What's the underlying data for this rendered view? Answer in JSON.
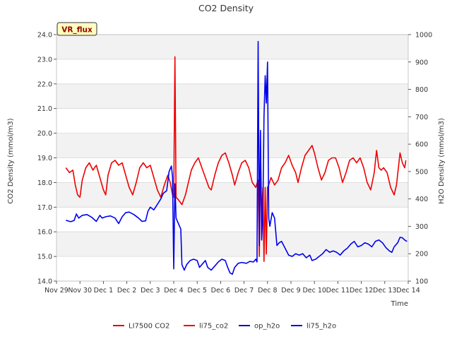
{
  "chart_data": {
    "type": "line",
    "title": "CO2 Density",
    "site_badge": "VR_flux",
    "xlabel": "Time",
    "ylabel_left": "CO2 Density (mmol/m3)",
    "ylabel_right": "H2O Density (mmol/m3)",
    "x_range_days": [
      0,
      15
    ],
    "x_tick_labels": [
      "Nov 29",
      "Nov 30",
      "Dec 1",
      "Dec 2",
      "Dec 3",
      "Dec 4",
      "Dec 5",
      "Dec 6",
      "Dec 7",
      "Dec 8",
      "Dec 9",
      "Dec 10",
      "Dec 11",
      "Dec 12",
      "Dec 13",
      "Dec 14"
    ],
    "y_left": {
      "min": 14.0,
      "max": 24.0,
      "ticks": [
        14.0,
        15.0,
        16.0,
        17.0,
        18.0,
        19.0,
        20.0,
        21.0,
        22.0,
        23.0,
        24.0
      ]
    },
    "y_right": {
      "min": 100,
      "max": 1000,
      "ticks": [
        100,
        200,
        300,
        400,
        500,
        600,
        700,
        800,
        900,
        1000
      ]
    },
    "legend": [
      {
        "label": "LI7500 CO2",
        "color": "#dd0000"
      },
      {
        "label": "li75_co2",
        "color": "#ee0000"
      },
      {
        "label": "op_h2o",
        "color": "#0000cc"
      },
      {
        "label": "li75_h2o",
        "color": "#0000ee"
      }
    ],
    "series": [
      {
        "name": "li75_co2",
        "axis": "left",
        "color": "#ee0000",
        "points": [
          [
            0.4,
            18.6
          ],
          [
            0.55,
            18.4
          ],
          [
            0.7,
            18.5
          ],
          [
            0.8,
            17.9
          ],
          [
            0.9,
            17.5
          ],
          [
            1.0,
            17.4
          ],
          [
            1.1,
            18.1
          ],
          [
            1.25,
            18.6
          ],
          [
            1.4,
            18.8
          ],
          [
            1.55,
            18.5
          ],
          [
            1.7,
            18.7
          ],
          [
            1.85,
            18.2
          ],
          [
            2.0,
            17.7
          ],
          [
            2.1,
            17.5
          ],
          [
            2.2,
            18.3
          ],
          [
            2.35,
            18.8
          ],
          [
            2.5,
            18.9
          ],
          [
            2.65,
            18.7
          ],
          [
            2.8,
            18.8
          ],
          [
            2.95,
            18.3
          ],
          [
            3.1,
            17.8
          ],
          [
            3.25,
            17.5
          ],
          [
            3.4,
            18.0
          ],
          [
            3.55,
            18.6
          ],
          [
            3.7,
            18.8
          ],
          [
            3.85,
            18.6
          ],
          [
            4.0,
            18.7
          ],
          [
            4.15,
            18.2
          ],
          [
            4.3,
            17.7
          ],
          [
            4.45,
            17.4
          ],
          [
            4.6,
            17.9
          ],
          [
            4.75,
            18.3
          ],
          [
            4.85,
            18.0
          ],
          [
            4.95,
            17.5
          ],
          [
            5.0,
            17.4
          ],
          [
            5.05,
            23.1
          ],
          [
            5.1,
            17.4
          ],
          [
            5.2,
            17.3
          ],
          [
            5.35,
            17.1
          ],
          [
            5.5,
            17.5
          ],
          [
            5.6,
            17.9
          ],
          [
            5.75,
            18.5
          ],
          [
            5.9,
            18.8
          ],
          [
            6.05,
            19.0
          ],
          [
            6.2,
            18.6
          ],
          [
            6.35,
            18.2
          ],
          [
            6.5,
            17.8
          ],
          [
            6.6,
            17.7
          ],
          [
            6.75,
            18.3
          ],
          [
            6.9,
            18.8
          ],
          [
            7.05,
            19.1
          ],
          [
            7.2,
            19.2
          ],
          [
            7.35,
            18.8
          ],
          [
            7.5,
            18.3
          ],
          [
            7.6,
            17.9
          ],
          [
            7.75,
            18.4
          ],
          [
            7.9,
            18.8
          ],
          [
            8.05,
            18.9
          ],
          [
            8.2,
            18.6
          ],
          [
            8.35,
            18.0
          ],
          [
            8.5,
            17.8
          ],
          [
            8.6,
            18.1
          ],
          [
            8.65,
            15.0
          ],
          [
            8.7,
            19.2
          ],
          [
            8.75,
            16.5
          ],
          [
            8.8,
            17.8
          ],
          [
            8.85,
            14.8
          ],
          [
            8.9,
            17.8
          ],
          [
            8.95,
            15.1
          ],
          [
            9.0,
            17.8
          ],
          [
            9.05,
            17.9
          ],
          [
            9.15,
            18.2
          ],
          [
            9.3,
            17.9
          ],
          [
            9.45,
            18.1
          ],
          [
            9.6,
            18.6
          ],
          [
            9.75,
            18.8
          ],
          [
            9.9,
            19.1
          ],
          [
            10.05,
            18.7
          ],
          [
            10.2,
            18.4
          ],
          [
            10.3,
            18.0
          ],
          [
            10.45,
            18.6
          ],
          [
            10.6,
            19.1
          ],
          [
            10.75,
            19.3
          ],
          [
            10.9,
            19.5
          ],
          [
            11.0,
            19.2
          ],
          [
            11.15,
            18.6
          ],
          [
            11.3,
            18.1
          ],
          [
            11.45,
            18.4
          ],
          [
            11.6,
            18.9
          ],
          [
            11.75,
            19.0
          ],
          [
            11.9,
            19.0
          ],
          [
            12.05,
            18.6
          ],
          [
            12.2,
            18.0
          ],
          [
            12.35,
            18.4
          ],
          [
            12.5,
            18.9
          ],
          [
            12.65,
            19.0
          ],
          [
            12.8,
            18.8
          ],
          [
            12.95,
            19.0
          ],
          [
            13.1,
            18.6
          ],
          [
            13.25,
            18.0
          ],
          [
            13.4,
            17.7
          ],
          [
            13.55,
            18.4
          ],
          [
            13.65,
            19.3
          ],
          [
            13.75,
            18.6
          ],
          [
            13.85,
            18.5
          ],
          [
            13.95,
            18.6
          ],
          [
            14.1,
            18.4
          ],
          [
            14.25,
            17.8
          ],
          [
            14.4,
            17.5
          ],
          [
            14.5,
            17.9
          ],
          [
            14.65,
            19.2
          ],
          [
            14.75,
            18.8
          ],
          [
            14.85,
            18.6
          ],
          [
            14.9,
            18.9
          ]
        ]
      },
      {
        "name": "li75_h2o",
        "axis": "right",
        "color": "#0000ee",
        "points": [
          [
            0.4,
            322
          ],
          [
            0.6,
            317
          ],
          [
            0.75,
            321
          ],
          [
            0.85,
            345
          ],
          [
            0.95,
            330
          ],
          [
            1.1,
            340
          ],
          [
            1.3,
            343
          ],
          [
            1.5,
            333
          ],
          [
            1.7,
            318
          ],
          [
            1.85,
            340
          ],
          [
            1.95,
            330
          ],
          [
            2.1,
            335
          ],
          [
            2.3,
            338
          ],
          [
            2.5,
            330
          ],
          [
            2.65,
            310
          ],
          [
            2.8,
            335
          ],
          [
            2.95,
            350
          ],
          [
            3.1,
            352
          ],
          [
            3.3,
            343
          ],
          [
            3.5,
            330
          ],
          [
            3.65,
            318
          ],
          [
            3.8,
            320
          ],
          [
            3.9,
            355
          ],
          [
            4.0,
            370
          ],
          [
            4.15,
            360
          ],
          [
            4.3,
            380
          ],
          [
            4.45,
            400
          ],
          [
            4.55,
            420
          ],
          [
            4.7,
            430
          ],
          [
            4.8,
            500
          ],
          [
            4.9,
            520
          ],
          [
            4.95,
            480
          ],
          [
            5.0,
            145
          ],
          [
            5.05,
            455
          ],
          [
            5.1,
            330
          ],
          [
            5.2,
            310
          ],
          [
            5.3,
            290
          ],
          [
            5.35,
            160
          ],
          [
            5.45,
            140
          ],
          [
            5.55,
            160
          ],
          [
            5.7,
            175
          ],
          [
            5.85,
            180
          ],
          [
            6.0,
            175
          ],
          [
            6.1,
            150
          ],
          [
            6.2,
            160
          ],
          [
            6.35,
            175
          ],
          [
            6.45,
            150
          ],
          [
            6.6,
            140
          ],
          [
            6.75,
            155
          ],
          [
            6.9,
            170
          ],
          [
            7.05,
            180
          ],
          [
            7.2,
            175
          ],
          [
            7.3,
            150
          ],
          [
            7.4,
            130
          ],
          [
            7.5,
            125
          ],
          [
            7.6,
            150
          ],
          [
            7.75,
            165
          ],
          [
            7.9,
            168
          ],
          [
            8.1,
            165
          ],
          [
            8.25,
            172
          ],
          [
            8.4,
            170
          ],
          [
            8.5,
            180
          ],
          [
            8.55,
            170
          ],
          [
            8.6,
            975
          ],
          [
            8.65,
            230
          ],
          [
            8.7,
            650
          ],
          [
            8.75,
            250
          ],
          [
            8.8,
            350
          ],
          [
            8.85,
            700
          ],
          [
            8.9,
            850
          ],
          [
            8.95,
            750
          ],
          [
            9.0,
            900
          ],
          [
            9.05,
            330
          ],
          [
            9.1,
            300
          ],
          [
            9.2,
            350
          ],
          [
            9.3,
            330
          ],
          [
            9.4,
            230
          ],
          [
            9.5,
            240
          ],
          [
            9.6,
            245
          ],
          [
            9.75,
            220
          ],
          [
            9.9,
            195
          ],
          [
            10.05,
            190
          ],
          [
            10.2,
            200
          ],
          [
            10.35,
            195
          ],
          [
            10.5,
            200
          ],
          [
            10.65,
            185
          ],
          [
            10.8,
            195
          ],
          [
            10.9,
            175
          ],
          [
            11.05,
            180
          ],
          [
            11.2,
            190
          ],
          [
            11.35,
            200
          ],
          [
            11.5,
            215
          ],
          [
            11.65,
            205
          ],
          [
            11.8,
            210
          ],
          [
            11.95,
            205
          ],
          [
            12.1,
            195
          ],
          [
            12.25,
            210
          ],
          [
            12.4,
            220
          ],
          [
            12.55,
            235
          ],
          [
            12.7,
            245
          ],
          [
            12.85,
            225
          ],
          [
            13.0,
            230
          ],
          [
            13.15,
            240
          ],
          [
            13.3,
            235
          ],
          [
            13.45,
            225
          ],
          [
            13.6,
            245
          ],
          [
            13.75,
            250
          ],
          [
            13.9,
            240
          ],
          [
            14.05,
            222
          ],
          [
            14.2,
            210
          ],
          [
            14.3,
            205
          ],
          [
            14.4,
            225
          ],
          [
            14.55,
            240
          ],
          [
            14.65,
            260
          ],
          [
            14.75,
            258
          ],
          [
            14.85,
            250
          ],
          [
            14.95,
            245
          ]
        ]
      }
    ]
  }
}
